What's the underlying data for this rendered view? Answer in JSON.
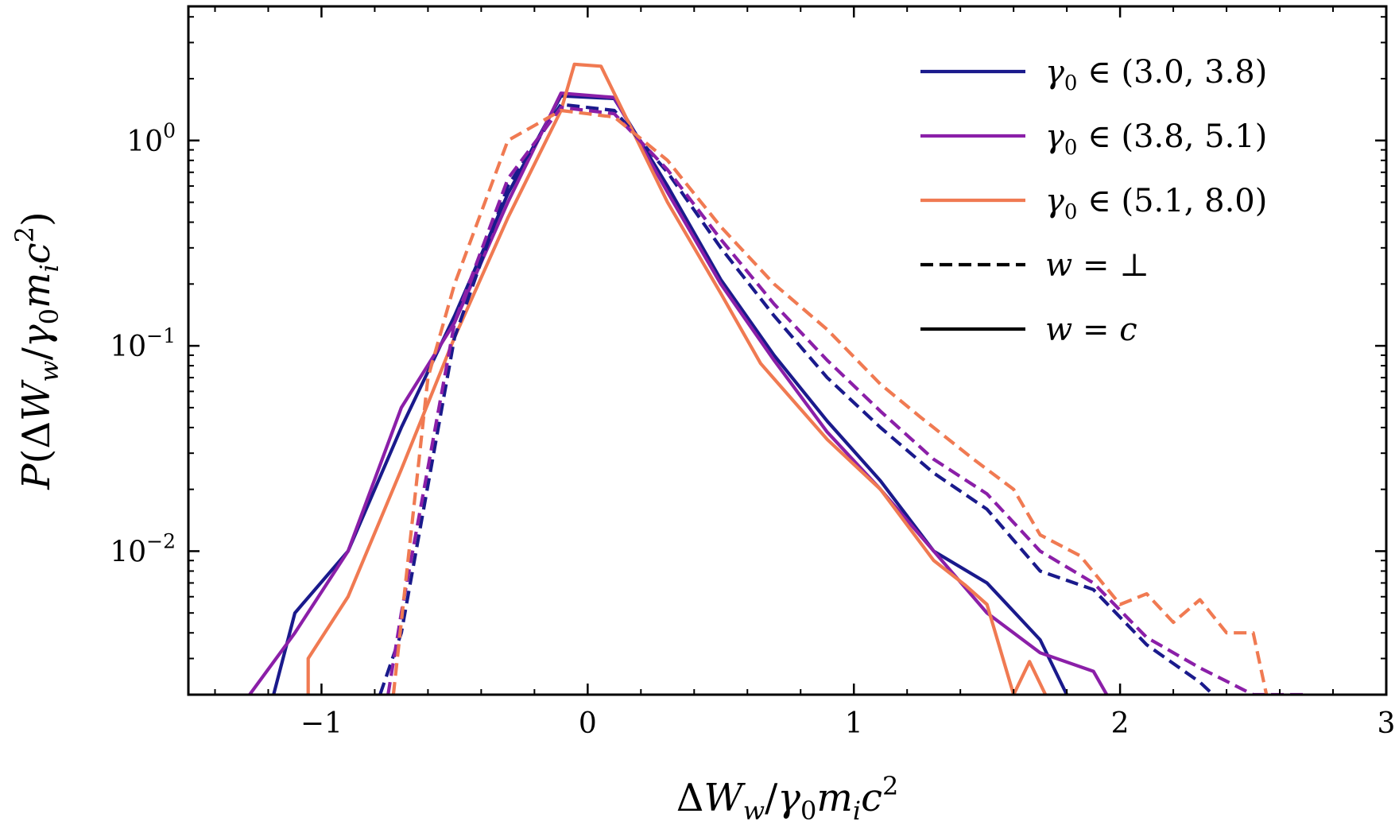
{
  "chart_data": {
    "type": "line",
    "xlabel": "ΔW_w/γ0 m_i c^2",
    "ylabel": "P(ΔW_w/γ0 m_i c^2)",
    "xlim": [
      -1.5,
      3
    ],
    "ylim": [
      0.002,
      4.5
    ],
    "yscale": "log",
    "grid": false,
    "legend_position": "top-right",
    "xticks": [
      -1,
      0,
      1,
      2,
      3
    ],
    "xtick_labels": [
      "−1",
      "0",
      "1",
      "2",
      "3"
    ],
    "yticks": [
      0.01,
      0.1,
      1
    ],
    "ytick_labels": [
      {
        "base": "10",
        "exp": "−2"
      },
      {
        "base": "10",
        "exp": "−1"
      },
      {
        "base": "10",
        "exp": "0"
      }
    ],
    "axis_label_parts": {
      "xlabel": [
        {
          "t": "Δ",
          "italic": false
        },
        {
          "t": "W",
          "italic": true
        },
        {
          "t": "w",
          "italic": true,
          "sub": true
        },
        {
          "t": "/",
          "italic": false
        },
        {
          "t": "γ",
          "italic": true
        },
        {
          "t": "0",
          "italic": false,
          "sub": true
        },
        {
          "t": "m",
          "italic": true
        },
        {
          "t": "i",
          "italic": true,
          "sub": true
        },
        {
          "t": "c",
          "italic": true
        },
        {
          "t": "2",
          "italic": false,
          "sup": true
        }
      ],
      "ylabel": [
        {
          "t": "P",
          "italic": true
        },
        {
          "t": "(Δ",
          "italic": false
        },
        {
          "t": "W",
          "italic": true
        },
        {
          "t": "w",
          "italic": true,
          "sub": true
        },
        {
          "t": "/",
          "italic": false
        },
        {
          "t": "γ",
          "italic": true
        },
        {
          "t": "0",
          "italic": false,
          "sub": true
        },
        {
          "t": "m",
          "italic": true
        },
        {
          "t": "i",
          "italic": true,
          "sub": true
        },
        {
          "t": "c",
          "italic": true
        },
        {
          "t": "2",
          "italic": false,
          "sup": true
        },
        {
          "t": ")",
          "italic": false
        }
      ]
    },
    "legend": [
      {
        "label": "γ0 ∈ (3.0, 3.8)",
        "parts": [
          {
            "t": "γ",
            "italic": true
          },
          {
            "t": "0",
            "sub": true
          },
          {
            "t": " ∈ (3.0, 3.8)"
          }
        ],
        "color": "#1a1a8c",
        "dash": false
      },
      {
        "label": "γ0 ∈ (3.8, 5.1)",
        "parts": [
          {
            "t": "γ",
            "italic": true
          },
          {
            "t": "0",
            "sub": true
          },
          {
            "t": " ∈ (3.8, 5.1)"
          }
        ],
        "color": "#8b1fa8",
        "dash": false
      },
      {
        "label": "γ0 ∈ (5.1, 8.0)",
        "parts": [
          {
            "t": "γ",
            "italic": true
          },
          {
            "t": "0",
            "sub": true
          },
          {
            "t": " ∈ (5.1, 8.0)"
          }
        ],
        "color": "#f07a52",
        "dash": false
      },
      {
        "label": "w = ⊥",
        "parts": [
          {
            "t": "w",
            "italic": true
          },
          {
            "t": " = ⊥"
          }
        ],
        "color": "#000000",
        "dash": true
      },
      {
        "label": "w = c",
        "parts": [
          {
            "t": "w",
            "italic": true
          },
          {
            "t": " = "
          },
          {
            "t": "c",
            "italic": true
          }
        ],
        "color": "#000000",
        "dash": false
      }
    ],
    "series": [
      {
        "name": "γ0 ∈ (3.0, 3.8), w = c",
        "color": "#1a1a8c",
        "dash": false,
        "x": [
          -1.18,
          -1.1,
          -0.9,
          -0.7,
          -0.5,
          -0.3,
          -0.1,
          0.1,
          0.3,
          0.5,
          0.7,
          0.9,
          1.1,
          1.3,
          1.5,
          1.7,
          1.8
        ],
        "y": [
          0.002,
          0.005,
          0.01,
          0.04,
          0.14,
          0.55,
          1.65,
          1.6,
          0.6,
          0.21,
          0.09,
          0.043,
          0.022,
          0.01,
          0.007,
          0.0037,
          0.002
        ]
      },
      {
        "name": "γ0 ∈ (3.8, 5.1), w = c",
        "color": "#8b1fa8",
        "dash": false,
        "x": [
          -1.27,
          -1.1,
          -0.9,
          -0.7,
          -0.5,
          -0.3,
          -0.1,
          0.1,
          0.3,
          0.5,
          0.7,
          0.9,
          1.1,
          1.3,
          1.5,
          1.7,
          1.9,
          1.95
        ],
        "y": [
          0.002,
          0.004,
          0.01,
          0.05,
          0.13,
          0.5,
          1.7,
          1.62,
          0.56,
          0.2,
          0.085,
          0.038,
          0.02,
          0.01,
          0.005,
          0.0032,
          0.0026,
          0.002
        ]
      },
      {
        "name": "γ0 ∈ (5.1, 8.0), w = c",
        "color": "#f07a52",
        "dash": false,
        "x": [
          -1.05,
          -1.05,
          -0.9,
          -0.7,
          -0.5,
          -0.3,
          -0.1,
          -0.05,
          0.05,
          0.3,
          0.5,
          0.65,
          0.9,
          1.1,
          1.3,
          1.42,
          1.5,
          1.6,
          1.66,
          1.72
        ],
        "y": [
          0.002,
          0.003,
          0.006,
          0.025,
          0.11,
          0.42,
          1.4,
          2.35,
          2.3,
          0.5,
          0.18,
          0.082,
          0.035,
          0.02,
          0.009,
          0.0068,
          0.0055,
          0.002,
          0.0029,
          0.002
        ]
      },
      {
        "name": "γ0 ∈ (3.0, 3.8), w = ⊥",
        "color": "#1a1a8c",
        "dash": true,
        "x": [
          -0.78,
          -0.7,
          -0.5,
          -0.3,
          -0.1,
          0.1,
          0.3,
          0.5,
          0.7,
          0.9,
          1.1,
          1.3,
          1.5,
          1.7,
          1.9,
          2.1,
          2.3,
          2.35
        ],
        "y": [
          0.002,
          0.004,
          0.11,
          0.6,
          1.5,
          1.4,
          0.7,
          0.3,
          0.14,
          0.07,
          0.04,
          0.024,
          0.016,
          0.008,
          0.0065,
          0.0035,
          0.0023,
          0.002
        ]
      },
      {
        "name": "γ0 ∈ (3.8, 5.1), w = ⊥",
        "color": "#8b1fa8",
        "dash": true,
        "x": [
          -0.75,
          -0.7,
          -0.5,
          -0.3,
          -0.1,
          0.1,
          0.3,
          0.5,
          0.7,
          0.9,
          1.1,
          1.3,
          1.5,
          1.7,
          1.9,
          2.1,
          2.3,
          2.5,
          2.6,
          2.7
        ],
        "y": [
          0.002,
          0.005,
          0.13,
          0.65,
          1.45,
          1.35,
          0.72,
          0.33,
          0.16,
          0.085,
          0.048,
          0.028,
          0.019,
          0.01,
          0.007,
          0.0038,
          0.0027,
          0.002,
          0.002,
          0.002
        ]
      },
      {
        "name": "γ0 ∈ (5.1, 8.0), w = ⊥",
        "color": "#f07a52",
        "dash": true,
        "x": [
          -0.73,
          -0.6,
          -0.5,
          -0.3,
          -0.1,
          0.0,
          0.1,
          0.3,
          0.5,
          0.7,
          0.9,
          1.1,
          1.25,
          1.45,
          1.6,
          1.7,
          1.85,
          2.0,
          2.1,
          2.2,
          2.3,
          2.4,
          2.5,
          2.55
        ],
        "y": [
          0.002,
          0.07,
          0.2,
          1.0,
          1.4,
          1.35,
          1.3,
          0.8,
          0.38,
          0.2,
          0.12,
          0.065,
          0.045,
          0.028,
          0.02,
          0.012,
          0.0095,
          0.0055,
          0.0062,
          0.0045,
          0.0058,
          0.004,
          0.004,
          0.002
        ]
      }
    ]
  }
}
